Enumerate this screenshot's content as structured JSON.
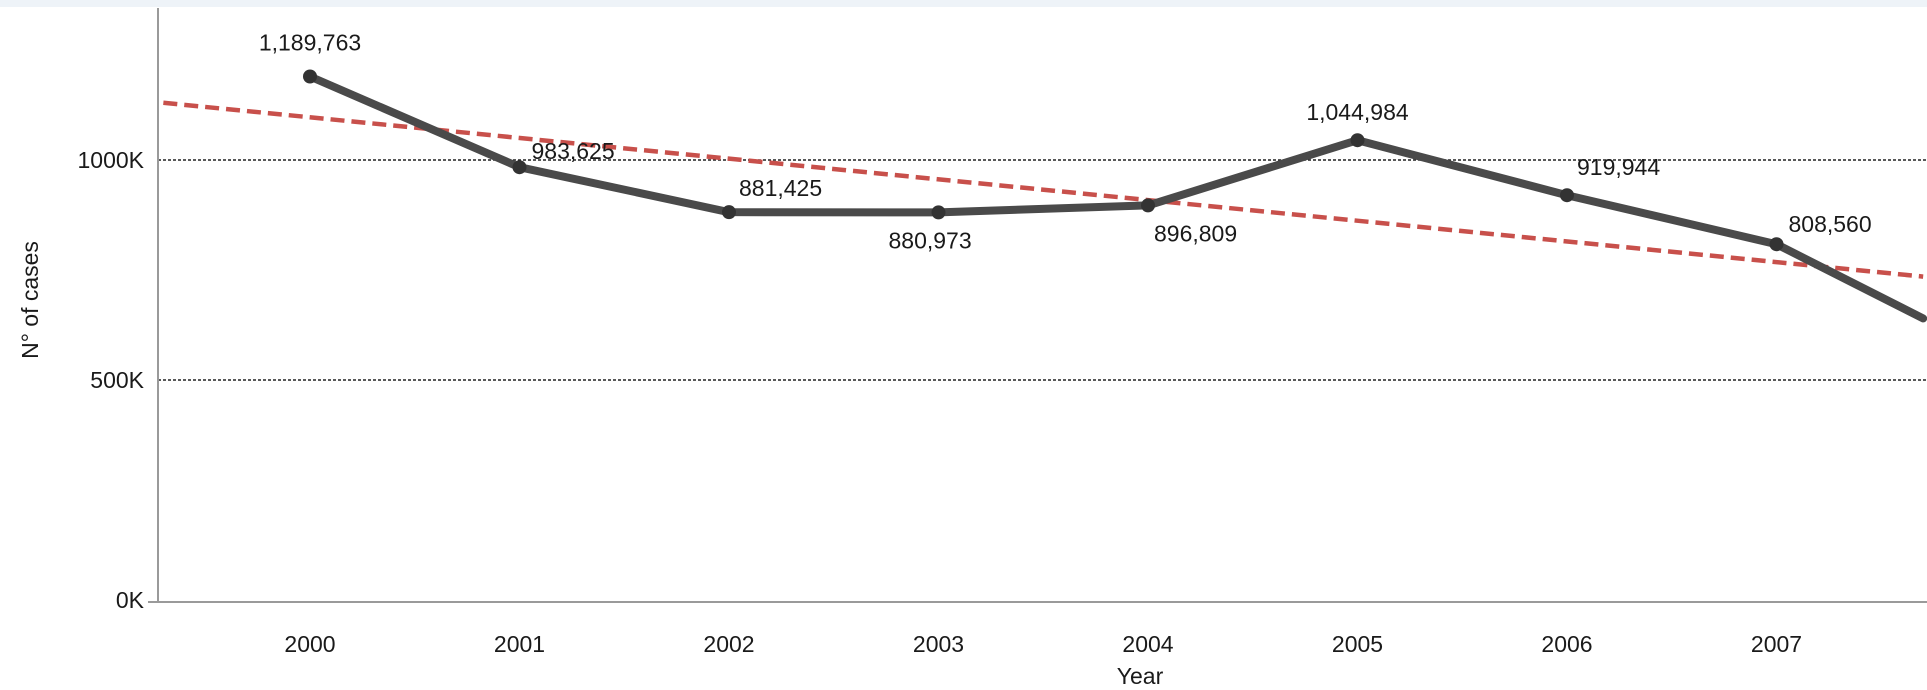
{
  "chart_data": {
    "type": "line",
    "title": "",
    "xlabel": "Year",
    "ylabel": "N° of cases",
    "x": [
      "2000",
      "2001",
      "2002",
      "2003",
      "2004",
      "2005",
      "2006",
      "2007"
    ],
    "y_ticks": [
      {
        "value": 0,
        "label": "0K"
      },
      {
        "value": 500000,
        "label": "500K"
      },
      {
        "value": 1000000,
        "label": "1000K"
      }
    ],
    "ylim": [
      0,
      1330000
    ],
    "gridlines_at": [
      500000,
      1000000
    ],
    "series": [
      {
        "type": "line",
        "values": [
          1189763,
          983625,
          881425,
          880973,
          896809,
          1044984,
          919944,
          808560
        ],
        "labels": [
          "1,189,763",
          "983,625",
          "881,425",
          "880,973",
          "896,809",
          "1,044,984",
          "919,944",
          "808,560"
        ],
        "color": "#4a4a4a",
        "continues_to": {
          "x_index": 7.7,
          "value": 640000
        }
      },
      {
        "type": "trend-dashed",
        "start": {
          "x_index": -0.7,
          "value": 1130000
        },
        "end": {
          "x_index": 7.7,
          "value": 735000
        },
        "color": "#c8504b"
      }
    ],
    "legend": "none",
    "grid": "horizontal dashed"
  }
}
